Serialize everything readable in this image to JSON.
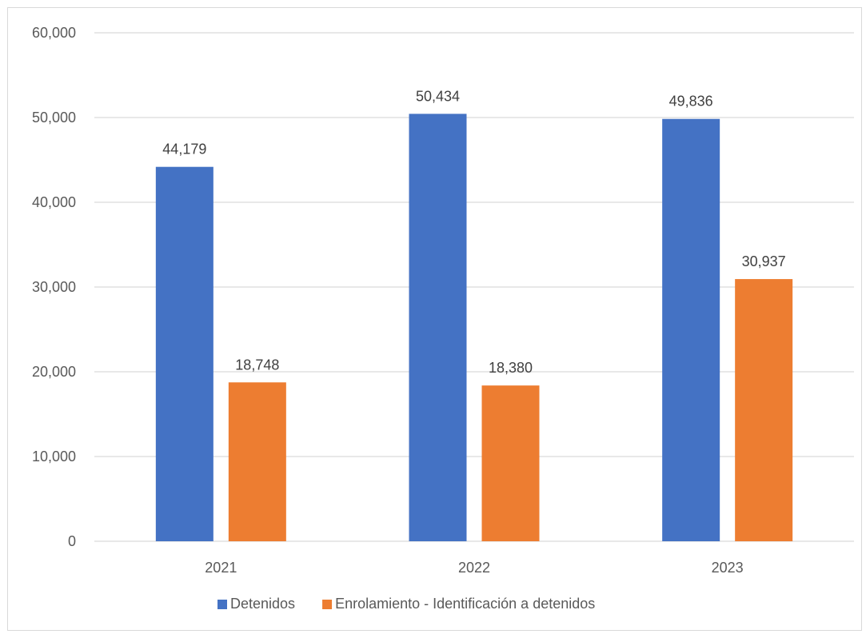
{
  "chart_data": {
    "type": "bar",
    "categories": [
      "2021",
      "2022",
      "2023"
    ],
    "series": [
      {
        "name": "Detenidos",
        "values": [
          44179,
          50434,
          49836
        ],
        "color": "#4472C4"
      },
      {
        "name": "Enrolamiento - Identificación a detenidos",
        "values": [
          18748,
          18380,
          30937
        ],
        "color": "#ED7D31"
      }
    ],
    "data_labels": [
      [
        "44,179",
        "50,434",
        "49,836"
      ],
      [
        "18,748",
        "18,380",
        "30,937"
      ]
    ],
    "y_ticks": [
      0,
      10000,
      20000,
      30000,
      40000,
      50000,
      60000
    ],
    "y_tick_labels": [
      "0",
      "10,000",
      "20,000",
      "30,000",
      "40,000",
      "50,000",
      "60,000"
    ],
    "ylim": [
      0,
      60000
    ],
    "grid": true,
    "legend_position": "bottom",
    "title": "",
    "xlabel": "",
    "ylabel": "",
    "gridline_color": "#d9d9d9"
  }
}
